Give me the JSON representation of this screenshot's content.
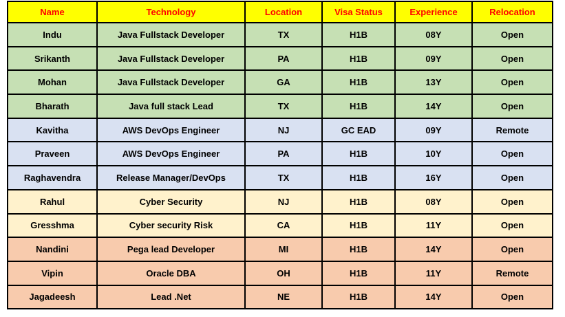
{
  "colors": {
    "header_bg": "#ffff00",
    "header_text": "#ff0000",
    "cell_text": "#000000",
    "border": "#000000",
    "groups": {
      "green": "#c6e0b4",
      "blue": "#d9e1f2",
      "yellow": "#fff2cc",
      "orange": "#f8cbad"
    }
  },
  "table": {
    "columns": [
      "Name",
      "Technology",
      "Location",
      "Visa Status",
      "Experience",
      "Relocation"
    ],
    "column_keys": [
      "name",
      "technology",
      "location",
      "visa_status",
      "experience",
      "relocation"
    ],
    "rows": [
      {
        "name": "Indu",
        "technology": "Java Fullstack Developer",
        "location": "TX",
        "visa_status": "H1B",
        "experience": "08Y",
        "relocation": "Open",
        "group": "green"
      },
      {
        "name": "Srikanth",
        "technology": "Java Fullstack Developer",
        "location": "PA",
        "visa_status": "H1B",
        "experience": "09Y",
        "relocation": "Open",
        "group": "green"
      },
      {
        "name": "Mohan",
        "technology": "Java Fullstack Developer",
        "location": "GA",
        "visa_status": "H1B",
        "experience": "13Y",
        "relocation": "Open",
        "group": "green"
      },
      {
        "name": "Bharath",
        "technology": "Java full stack Lead",
        "location": "TX",
        "visa_status": "H1B",
        "experience": "14Y",
        "relocation": "Open",
        "group": "green"
      },
      {
        "name": "Kavitha",
        "technology": "AWS DevOps Engineer",
        "location": "NJ",
        "visa_status": "GC EAD",
        "experience": "09Y",
        "relocation": "Remote",
        "group": "blue"
      },
      {
        "name": "Praveen",
        "technology": "AWS DevOps Engineer",
        "location": "PA",
        "visa_status": "H1B",
        "experience": "10Y",
        "relocation": "Open",
        "group": "blue"
      },
      {
        "name": "Raghavendra",
        "technology": "Release Manager/DevOps",
        "location": "TX",
        "visa_status": "H1B",
        "experience": "16Y",
        "relocation": "Open",
        "group": "blue"
      },
      {
        "name": "Rahul",
        "technology": "Cyber Security",
        "location": "NJ",
        "visa_status": "H1B",
        "experience": "08Y",
        "relocation": "Open",
        "group": "yellow"
      },
      {
        "name": "Gresshma",
        "technology": "Cyber security Risk",
        "location": "CA",
        "visa_status": "H1B",
        "experience": "11Y",
        "relocation": "Open",
        "group": "yellow"
      },
      {
        "name": "Nandini",
        "technology": "Pega lead Developer",
        "location": "MI",
        "visa_status": "H1B",
        "experience": "14Y",
        "relocation": "Open",
        "group": "orange"
      },
      {
        "name": "Vipin",
        "technology": "Oracle DBA",
        "location": "OH",
        "visa_status": "H1B",
        "experience": "11Y",
        "relocation": "Remote",
        "group": "orange"
      },
      {
        "name": "Jagadeesh",
        "technology": "Lead .Net",
        "location": "NE",
        "visa_status": "H1B",
        "experience": "14Y",
        "relocation": "Open",
        "group": "orange"
      }
    ]
  }
}
